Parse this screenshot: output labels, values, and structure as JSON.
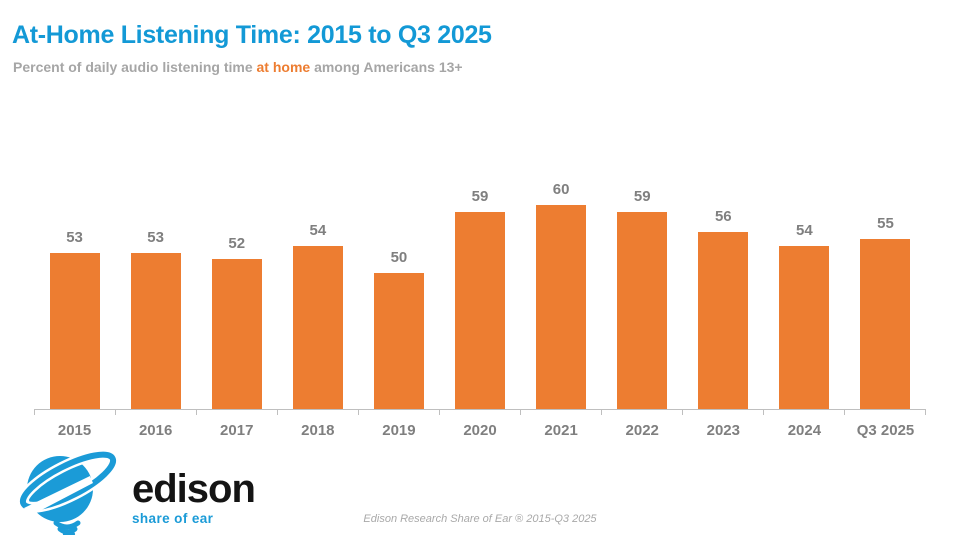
{
  "header": {
    "title": "At-Home Listening Time: 2015 to Q3 2025",
    "subtitle_prefix": "Percent of daily audio listening time ",
    "subtitle_highlight": "at home",
    "subtitle_suffix": " among Americans 13+"
  },
  "chart_data": {
    "type": "bar",
    "categories": [
      "2015",
      "2016",
      "2017",
      "2018",
      "2019",
      "2020",
      "2021",
      "2022",
      "2023",
      "2024",
      "Q3 2025"
    ],
    "values": [
      53,
      53,
      52,
      54,
      50,
      59,
      60,
      59,
      56,
      54,
      55
    ],
    "title": "At-Home Listening Time: 2015 to Q3 2025",
    "xlabel": "",
    "ylabel": "",
    "ylim": [
      30,
      65
    ],
    "grid": false,
    "legend": false,
    "value_labels_shown": true,
    "bar_color": "#ED7D31",
    "label_color": "#7F7F7F",
    "axis_color": "#BFBFBF"
  },
  "logo": {
    "brand": "edison",
    "tagline": "share of ear"
  },
  "footer": {
    "source": "Edison Research Share of Ear ® 2015-Q3 2025"
  },
  "colors": {
    "title_blue": "#1399D6",
    "highlight_orange": "#ED7D31",
    "subtitle_gray": "#A6A6A6",
    "logo_blue": "#1B9BD7"
  }
}
